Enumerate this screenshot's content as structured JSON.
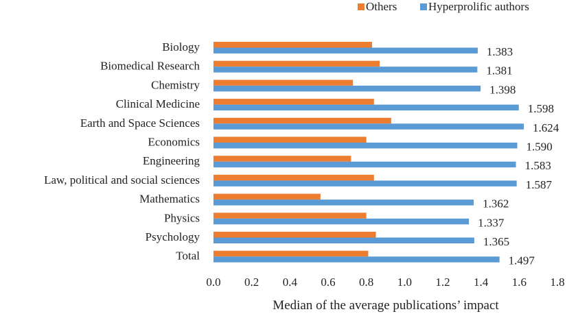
{
  "chart_data": {
    "type": "bar",
    "orientation": "horizontal",
    "title": "",
    "xlabel": "Median of the average publications’ impact",
    "ylabel": "",
    "xlim": [
      0,
      1.8
    ],
    "xticks": [
      "0.0",
      "0.2",
      "0.4",
      "0.6",
      "0.8",
      "1.0",
      "1.2",
      "1.4",
      "1.6",
      "1.8"
    ],
    "xtick_values": [
      0,
      0.2,
      0.4,
      0.6,
      0.8,
      1.0,
      1.2,
      1.4,
      1.6,
      1.8
    ],
    "grid": false,
    "legend_position": "top-right",
    "categories": [
      "Biology",
      "Biomedical Research",
      "Chemistry",
      "Clinical Medicine",
      "Earth and Space Sciences",
      "Economics",
      "Engineering",
      "Law, political and social sciences",
      "Mathematics",
      "Physics",
      "Psychology",
      "Total"
    ],
    "series": [
      {
        "name": "Others",
        "color": "#ED7D31",
        "values": [
          0.83,
          0.87,
          0.73,
          0.84,
          0.93,
          0.8,
          0.72,
          0.84,
          0.56,
          0.8,
          0.85,
          0.81
        ],
        "labels": []
      },
      {
        "name": "Hyperprolific authors",
        "color": "#5B9BD5",
        "values": [
          1.383,
          1.381,
          1.398,
          1.598,
          1.624,
          1.59,
          1.583,
          1.587,
          1.362,
          1.337,
          1.365,
          1.497
        ],
        "labels": [
          "1.383",
          "1.381",
          "1.398",
          "1.598",
          "1.624",
          "1.590",
          "1.583",
          "1.587",
          "1.362",
          "1.337",
          "1.365",
          "1.497"
        ]
      }
    ]
  },
  "legend": {
    "others_label": "Others",
    "hyper_label": "Hyperprolific authors"
  }
}
